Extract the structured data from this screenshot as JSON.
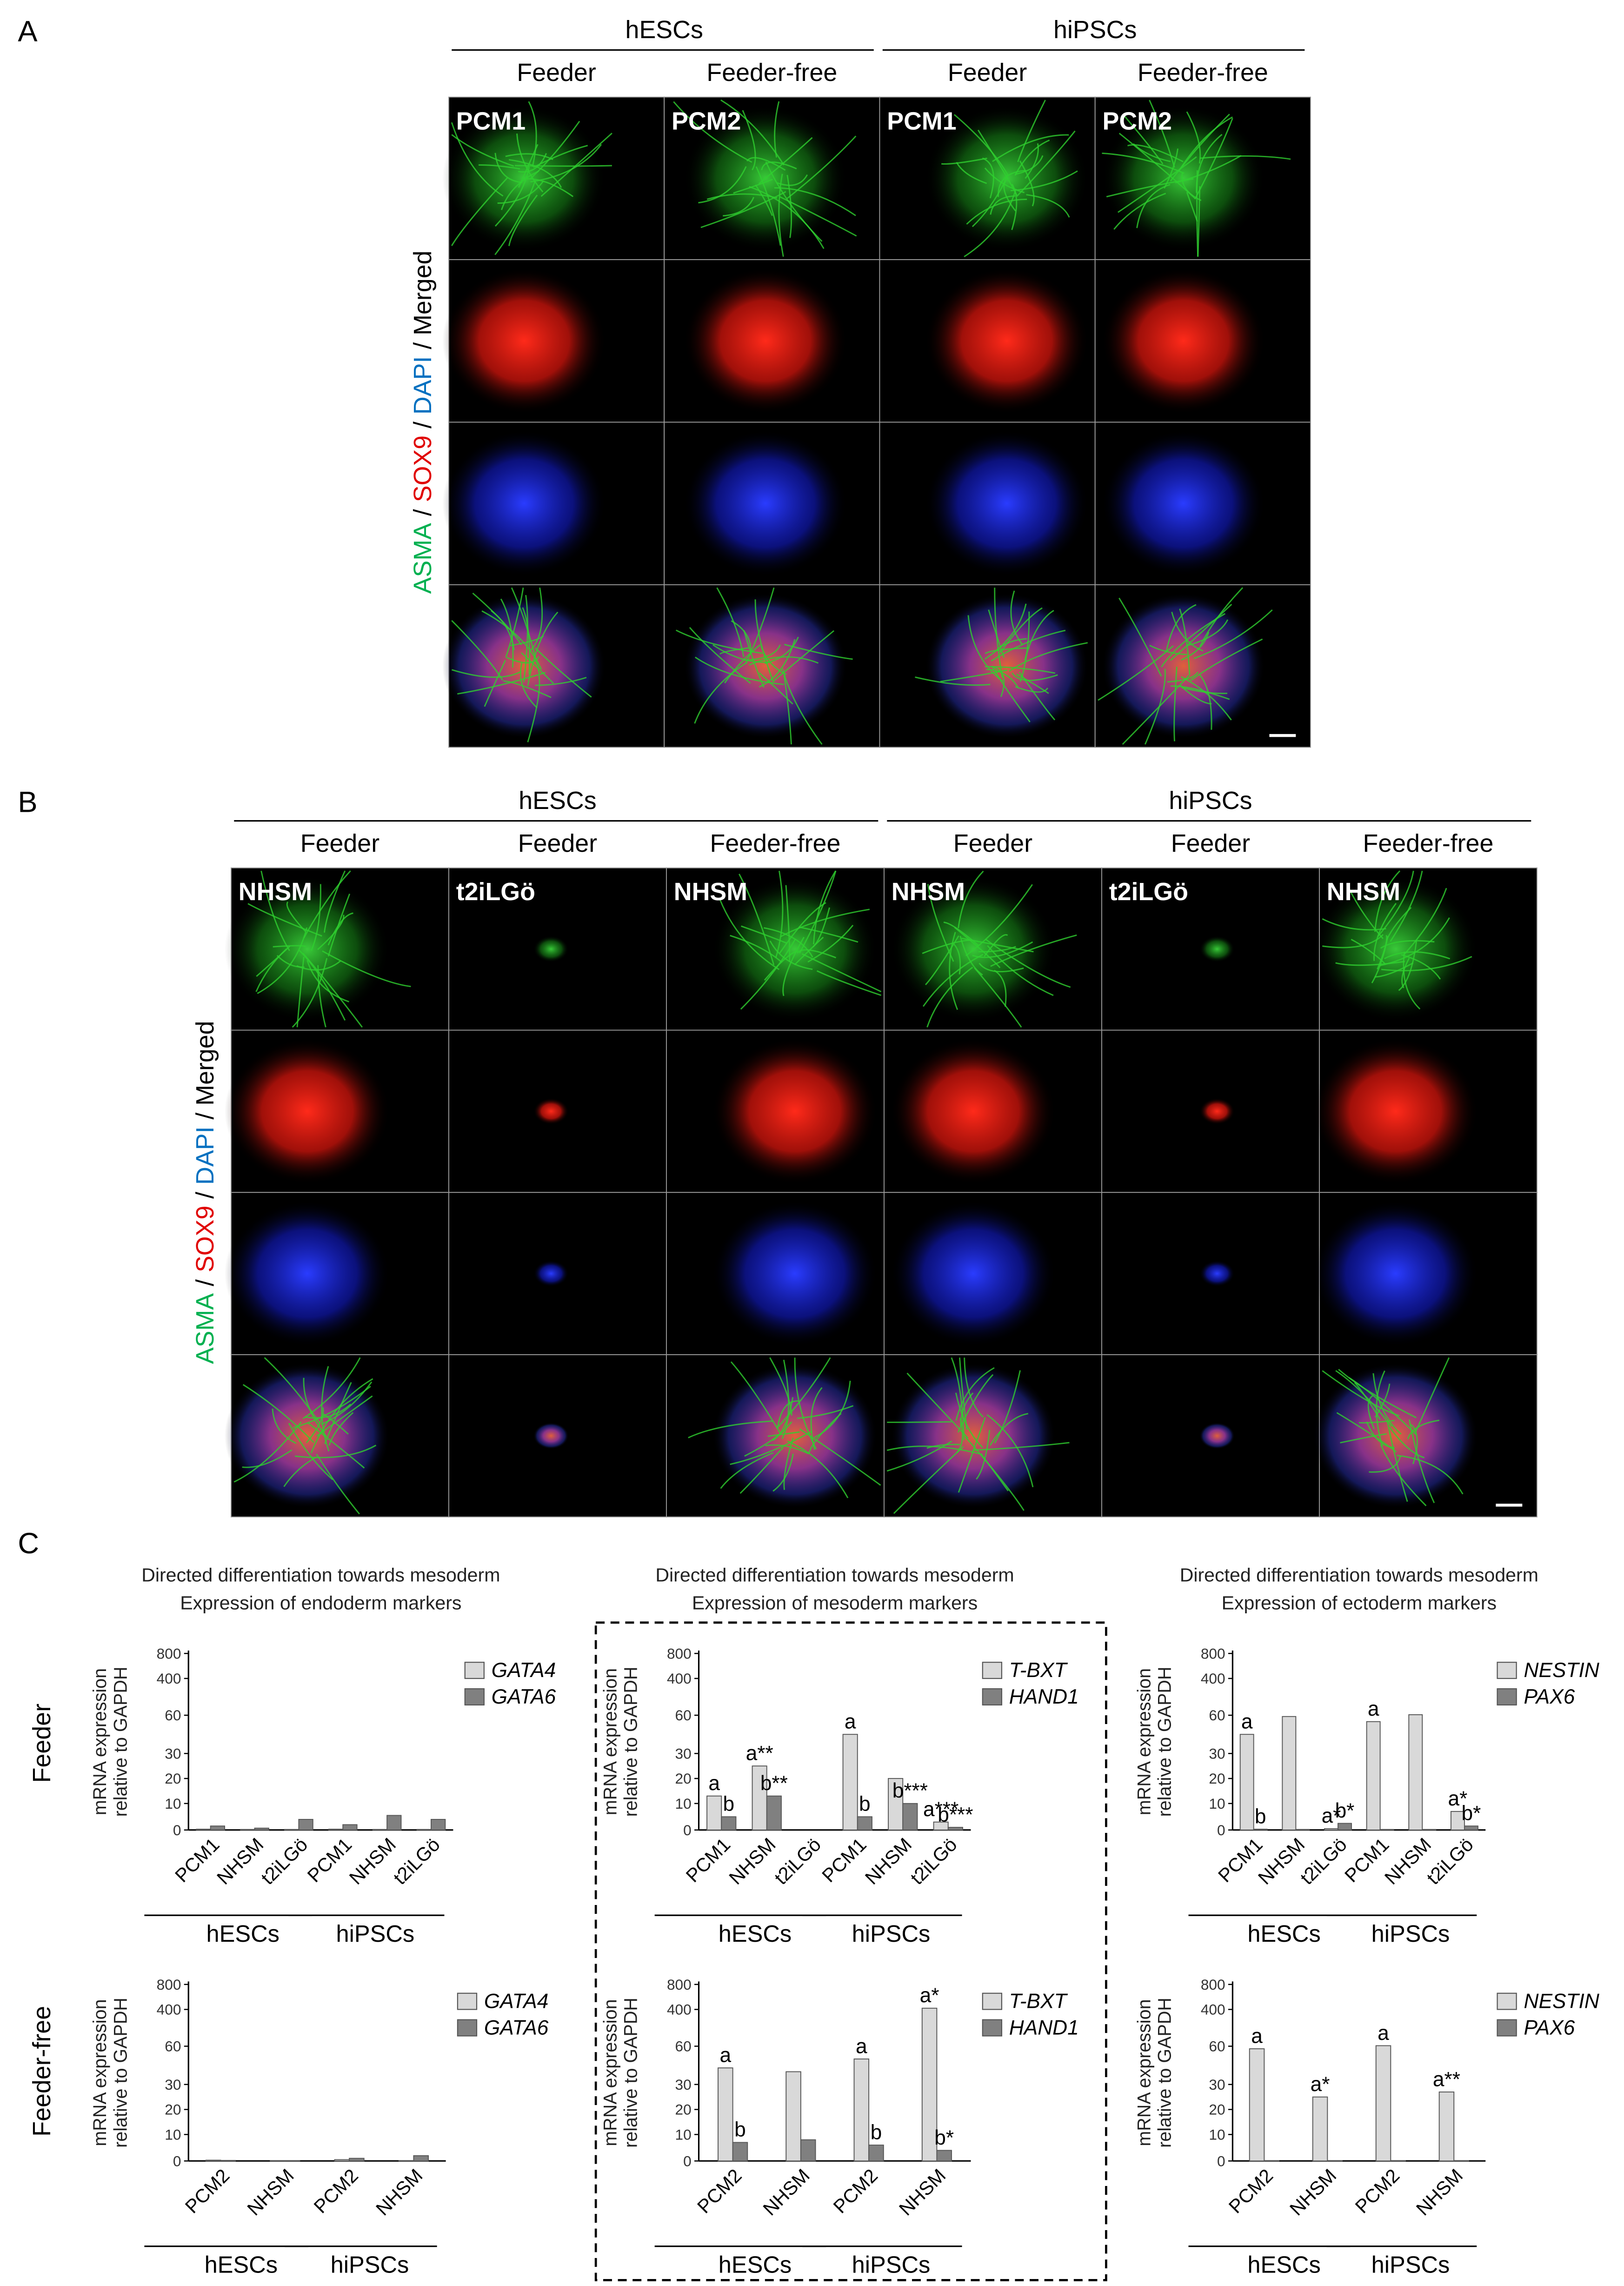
{
  "panels": [
    {
      "label": "A",
      "groups": [
        {
          "name": "hESCs",
          "conditions": [
            "Feeder",
            "Feeder-free"
          ]
        },
        {
          "name": "hiPSCs",
          "conditions": [
            "Feeder",
            "Feeder-free"
          ]
        }
      ],
      "stain_label": [
        "ASMA",
        " / ",
        "SOX9",
        " / ",
        "DAPI",
        " / Merged"
      ],
      "image_labels": [
        "PCM1",
        "PCM2",
        "PCM1",
        "PCM2"
      ]
    },
    {
      "label": "B",
      "groups": [
        {
          "name": "hESCs",
          "conditions": [
            "Feeder",
            "Feeder",
            "Feeder-free"
          ]
        },
        {
          "name": "hiPSCs",
          "conditions": [
            "Feeder",
            "Feeder",
            "Feeder-free"
          ]
        }
      ],
      "stain_label": [
        "ASMA",
        " / ",
        "SOX9",
        " / ",
        "DAPI",
        " / Merged"
      ],
      "image_labels": [
        "NHSM",
        "t2iLGö",
        "NHSM",
        "NHSM",
        "t2iLGö",
        "NHSM"
      ]
    }
  ],
  "panel_c_label": "C",
  "row_labels": [
    "Feeder",
    "Feeder-free"
  ],
  "chart_data": [
    {
      "type": "bar",
      "title": "Directed differentiation towards mesoderm",
      "subtitle": "Expression of endoderm markers",
      "ylabel": [
        "mRNA expression",
        "relative to GAPDH"
      ],
      "categories": [
        "PCM1",
        "NHSM",
        "t2iLGö",
        "PCM1",
        "NHSM",
        "t2iLGö"
      ],
      "groups": [
        "hESCs",
        "hiPSCs"
      ],
      "ylim": [
        0,
        800
      ],
      "yticks": [
        0,
        10,
        20,
        30,
        60,
        400,
        800
      ],
      "series": [
        {
          "name": "GATA4",
          "color": "#d9d9d9",
          "values": [
            0.3,
            0.2,
            0.2,
            0.3,
            0.2,
            0.2
          ],
          "annotations": [
            null,
            null,
            null,
            null,
            null,
            null
          ]
        },
        {
          "name": "GATA6",
          "color": "#808080",
          "values": [
            1.5,
            0.7,
            4,
            2,
            5.5,
            4
          ],
          "annotations": [
            null,
            null,
            null,
            null,
            null,
            null
          ]
        }
      ]
    },
    {
      "type": "bar",
      "title": "Directed differentiation towards mesoderm",
      "subtitle": "Expression of mesoderm markers",
      "ylabel": [
        "mRNA expression",
        "relative to GAPDH"
      ],
      "categories": [
        "PCM1",
        "NHSM",
        "t2iLGö",
        "PCM1",
        "NHSM",
        "t2iLGö"
      ],
      "groups": [
        "hESCs",
        "hiPSCs"
      ],
      "ylim": [
        0,
        800
      ],
      "yticks": [
        0,
        10,
        20,
        30,
        60,
        400,
        800
      ],
      "series": [
        {
          "name": "T-BXT",
          "color": "#d9d9d9",
          "values": [
            13,
            25,
            0,
            45,
            20,
            3
          ],
          "annotations": [
            "a",
            "a**",
            null,
            "a",
            null,
            "a***"
          ]
        },
        {
          "name": "HAND1",
          "color": "#808080",
          "values": [
            5,
            13,
            0,
            5,
            10,
            1
          ],
          "annotations": [
            "b",
            "b**",
            null,
            "b",
            "b***",
            "b***"
          ]
        }
      ]
    },
    {
      "type": "bar",
      "title": "Directed differentiation towards mesoderm",
      "subtitle": "Expression of ectoderm markers",
      "ylabel": [
        "mRNA expression",
        "relative to GAPDH"
      ],
      "categories": [
        "PCM1",
        "NHSM",
        "t2iLGö",
        "PCM1",
        "NHSM",
        "t2iLGö"
      ],
      "groups": [
        "hESCs",
        "hiPSCs"
      ],
      "ylim": [
        0,
        800
      ],
      "yticks": [
        0,
        10,
        20,
        30,
        60,
        400,
        800
      ],
      "series": [
        {
          "name": "NESTIN",
          "color": "#d9d9d9",
          "values": [
            45,
            59,
            0.5,
            55,
            65,
            7
          ],
          "annotations": [
            "a",
            null,
            "a*",
            "a",
            null,
            "a*"
          ]
        },
        {
          "name": "PAX6",
          "color": "#808080",
          "values": [
            0.3,
            0.2,
            2.5,
            0.2,
            0.2,
            1.5
          ],
          "annotations": [
            "b",
            null,
            "b*",
            null,
            null,
            "b*"
          ]
        }
      ]
    },
    {
      "type": "bar",
      "ylabel": [
        "mRNA expression",
        "relative to GAPDH"
      ],
      "categories": [
        "PCM2",
        "NHSM",
        "PCM2",
        "NHSM"
      ],
      "groups": [
        "hESCs",
        "hiPSCs"
      ],
      "ylim": [
        0,
        800
      ],
      "yticks": [
        0,
        10,
        20,
        30,
        60,
        400,
        800
      ],
      "series": [
        {
          "name": "GATA4",
          "color": "#d9d9d9",
          "values": [
            0.3,
            0.1,
            0.5,
            0.1
          ],
          "annotations": [
            null,
            null,
            null,
            null
          ]
        },
        {
          "name": "GATA6",
          "color": "#808080",
          "values": [
            0.2,
            0.1,
            1,
            2
          ],
          "annotations": [
            null,
            null,
            null,
            null
          ]
        }
      ]
    },
    {
      "type": "bar",
      "ylabel": [
        "mRNA expression",
        "relative to GAPDH"
      ],
      "categories": [
        "PCM2",
        "NHSM",
        "PCM2",
        "NHSM"
      ],
      "groups": [
        "hESCs",
        "hiPSCs"
      ],
      "ylim": [
        0,
        800
      ],
      "yticks": [
        0,
        10,
        20,
        30,
        60,
        400,
        800
      ],
      "series": [
        {
          "name": "T-BXT",
          "color": "#d9d9d9",
          "values": [
            43,
            40,
            50,
            420
          ],
          "annotations": [
            "a",
            null,
            "a",
            "a*"
          ]
        },
        {
          "name": "HAND1",
          "color": "#808080",
          "values": [
            7,
            8,
            6,
            4
          ],
          "annotations": [
            "b",
            null,
            "b",
            "b*"
          ]
        }
      ]
    },
    {
      "type": "bar",
      "ylabel": [
        "mRNA expression",
        "relative to GAPDH"
      ],
      "categories": [
        "PCM2",
        "NHSM",
        "PCM2",
        "NHSM"
      ],
      "groups": [
        "hESCs",
        "hiPSCs"
      ],
      "ylim": [
        0,
        800
      ],
      "yticks": [
        0,
        10,
        20,
        30,
        60,
        400,
        800
      ],
      "series": [
        {
          "name": "NESTIN",
          "color": "#d9d9d9",
          "values": [
            58,
            25,
            65,
            27
          ],
          "annotations": [
            "a",
            "a*",
            "a",
            "a**"
          ]
        },
        {
          "name": "PAX6",
          "color": "#808080",
          "values": [
            0.1,
            0.1,
            0.1,
            0.1
          ],
          "annotations": [
            null,
            null,
            null,
            null
          ]
        }
      ]
    }
  ]
}
